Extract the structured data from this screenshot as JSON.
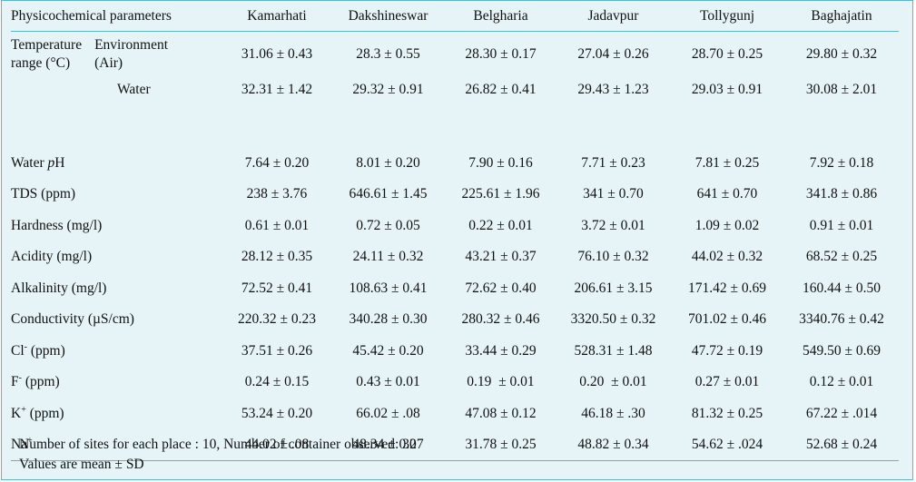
{
  "header": {
    "param": "Physicochemical parameters",
    "cols": [
      "Kamarhati",
      "Dakshineswar",
      "Belgharia",
      "Jadavpur",
      "Tollygunj",
      "Baghajatin"
    ]
  },
  "temperature": {
    "label_line1": "Temperature",
    "label_line2": "range (°C)",
    "env_line1": "Environment",
    "env_line2": "(Air)",
    "env_values": [
      "31.06 ± 0.43",
      "28.3 ± 0.55",
      "28.30 ± 0.17",
      "27.04 ± 0.26",
      "28.70 ± 0.25",
      "29.80 ± 0.32"
    ],
    "water_label": "Water",
    "water_values": [
      "32.31 ± 1.42",
      "29.32 ± 0.91",
      "26.82 ± 0.41",
      "29.43 ± 1.23",
      "29.03 ± 0.91",
      "30.08 ± 2.01"
    ]
  },
  "rows": [
    {
      "label": "Water ",
      "label_it": "p",
      "label_rest": "H",
      "values": [
        "7.64 ± 0.20",
        "8.01 ± 0.20",
        "7.90 ± 0.16",
        "7.71 ± 0.23",
        "7.81 ± 0.25",
        "7.92 ± 0.18"
      ]
    },
    {
      "label": "TDS (ppm)",
      "values": [
        "238 ± 3.76",
        "646.61 ± 1.45",
        "225.61 ± 1.96",
        "341 ± 0.70",
        "641 ± 0.70",
        "341.8 ± 0.86"
      ]
    },
    {
      "label": "Hardness (mg/l)",
      "values": [
        "0.61 ± 0.01",
        "0.72 ± 0.05",
        "0.22 ± 0.01",
        "3.72 ± 0.01",
        "1.09 ± 0.02",
        "0.91 ± 0.01"
      ]
    },
    {
      "label": "Acidity (mg/l)",
      "values": [
        "28.12 ± 0.35",
        "24.11 ± 0.32",
        "43.21 ± 0.37",
        "76.10 ± 0.32",
        "44.02 ± 0.32",
        "68.52 ± 0.25"
      ]
    },
    {
      "label": "Alkalinity (mg/l)",
      "values": [
        "72.52 ± 0.41",
        "108.63 ± 0.41",
        "72.62 ± 0.40",
        "206.61 ± 3.15",
        "171.42 ± 0.69",
        "160.44 ± 0.50"
      ]
    },
    {
      "label": "Conductivity (µS/cm)",
      "values": [
        "220.32 ± 0.23",
        "340.28 ± 0.30",
        "280.32 ± 0.46",
        "3320.50 ± 0.32",
        "701.02 ± 0.46",
        "3340.76 ± 0.42"
      ]
    },
    {
      "label": "Cl",
      "sup": "-",
      "label_rest": " (ppm)",
      "values": [
        "37.51 ± 0.26",
        "45.42 ± 0.20",
        "33.44 ± 0.29",
        "528.31 ± 1.48",
        "47.72 ± 0.19",
        "549.50 ± 0.69"
      ]
    },
    {
      "label": "F",
      "sup": "-",
      "label_rest": " (ppm)",
      "values": [
        "0.24 ± 0.15",
        "0.43 ± 0.01",
        "0.19  ± 0.01",
        "0.20  ± 0.01",
        "0.27 ± 0.01",
        "0.12 ± 0.01"
      ]
    },
    {
      "label": "K",
      "sup": "+",
      "label_rest": " (ppm)",
      "values": [
        "53.24 ± 0.20",
        "66.02 ± .08",
        "47.08 ± 0.12",
        "46.18 ± .30",
        "81.32 ± 0.25",
        "67.22 ± .014"
      ]
    },
    {
      "label": "Na",
      "sup": "+",
      "label_rest": "",
      "values": [
        "44.02 ± .08",
        "48.34 ± 0.27",
        "31.78 ± 0.25",
        "48.82 ± 0.34",
        "54.62 ± .024",
        "52.68 ± 0.24"
      ]
    }
  ],
  "notes": {
    "line1": "Number of sites for each place : 10, Number of container observed: 30",
    "line2": "Values are mean ± SD"
  },
  "colors": {
    "background": "#e6f4f8",
    "rule": "#5fb3cc",
    "text": "#111111"
  }
}
